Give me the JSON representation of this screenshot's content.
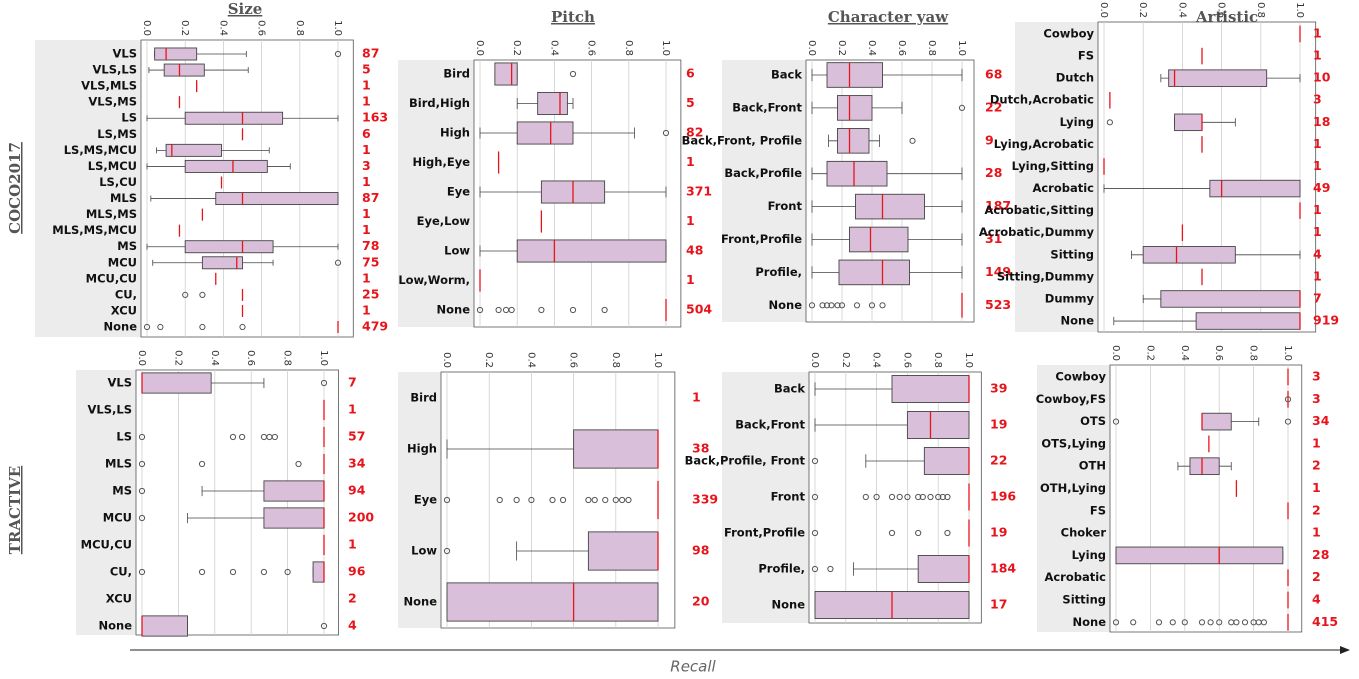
{
  "column_titles": [
    "Size",
    "Pitch",
    "Character yaw",
    "Artistic"
  ],
  "row_labels": [
    "COCO2017",
    "TRACTIVE"
  ],
  "x_label": "Recall",
  "chart_data": [
    {
      "type": "box",
      "color": "#d9bfd9",
      "median_color": "#e8141c",
      "xlim": [
        0,
        1
      ],
      "xticks": [
        {
          "value": 0,
          "label": "0.0"
        },
        0.2,
        0.4,
        0.6,
        0.8,
        {
          "value": 1,
          "label": "1.0"
        }
      ],
      "grid": true,
      "categories": [
        "VLS",
        "VLS,LS",
        "VLS,MLS",
        "VLS,MS",
        "LS",
        "LS,MS",
        "LS,MS,MCU",
        "LS,MCU",
        "LS,CU",
        "MLS",
        "MLS,MS",
        "MLS,MS,MCU",
        "MS",
        "MCU",
        "MCU,CU",
        "CU,",
        "XCU",
        "None"
      ],
      "counts": [
        87,
        5,
        1,
        1,
        163,
        6,
        1,
        3,
        1,
        87,
        1,
        1,
        78,
        75,
        1,
        25,
        1,
        479
      ],
      "boxes": [
        {
          "min": 0.04,
          "q1": 0.04,
          "median": 0.1,
          "q3": 0.26,
          "max": 0.52,
          "outliers": [
            1
          ]
        },
        {
          "min": 0.01,
          "q1": 0.09,
          "median": 0.17,
          "q3": 0.3,
          "max": 0.53
        },
        {
          "median": 0.26
        },
        {
          "median": 0.17
        },
        {
          "min": 0,
          "q1": 0.2,
          "median": 0.5,
          "q3": 0.71,
          "max": 1
        },
        {
          "median": 0.5
        },
        {
          "min": 0.05,
          "q1": 0.1,
          "median": 0.13,
          "q3": 0.39,
          "max": 0.64
        },
        {
          "min": 0,
          "q1": 0.2,
          "median": 0.45,
          "q3": 0.63,
          "max": 0.75
        },
        {
          "median": 0.39
        },
        {
          "min": 0.02,
          "q1": 0.36,
          "median": 0.5,
          "q3": 1,
          "max": 1
        },
        {
          "median": 0.29
        },
        {
          "median": 0.17
        },
        {
          "min": 0,
          "q1": 0.2,
          "median": 0.5,
          "q3": 0.66,
          "max": 1
        },
        {
          "min": 0.03,
          "q1": 0.29,
          "median": 0.47,
          "q3": 0.5,
          "max": 0.66,
          "outliers": [
            1
          ]
        },
        {
          "median": 0.36
        },
        {
          "median": 0.5,
          "outliers": [
            0.2,
            0.29
          ]
        },
        {
          "median": 0.5
        },
        {
          "median": 1,
          "outliers": [
            0,
            0.07,
            0.29,
            0.5
          ]
        }
      ]
    },
    {
      "type": "box",
      "color": "#d9bfd9",
      "median_color": "#e8141c",
      "xlim": [
        0,
        1
      ],
      "xticks": [
        {
          "value": 0,
          "label": "0.0"
        },
        0.2,
        0.4,
        0.6,
        0.8,
        {
          "value": 1,
          "label": "1.0"
        }
      ],
      "grid": true,
      "categories": [
        "Bird",
        "Bird,High",
        "High",
        "High,Eye",
        "Eye",
        "Eye,Low",
        "Low",
        "Low,Worm,",
        "None"
      ],
      "counts": [
        6,
        5,
        82,
        1,
        371,
        1,
        48,
        1,
        504
      ],
      "boxes": [
        {
          "min": 0.08,
          "q1": 0.08,
          "median": 0.17,
          "q3": 0.2,
          "max": 0.2,
          "outliers": [
            0.5
          ]
        },
        {
          "min": 0.2,
          "q1": 0.31,
          "median": 0.43,
          "q3": 0.47,
          "max": 0.5
        },
        {
          "min": 0,
          "q1": 0.2,
          "median": 0.38,
          "q3": 0.5,
          "max": 0.83,
          "outliers": [
            1
          ]
        },
        {
          "median": 0.1
        },
        {
          "min": 0,
          "q1": 0.33,
          "median": 0.5,
          "q3": 0.67,
          "max": 1
        },
        {
          "median": 0.33
        },
        {
          "min": 0,
          "q1": 0.2,
          "median": 0.4,
          "q3": 1,
          "max": 1
        },
        {
          "median": 0
        },
        {
          "median": 1,
          "outliers": [
            0,
            0.1,
            0.14,
            0.17,
            0.33,
            0.5,
            0.67
          ]
        }
      ]
    },
    {
      "type": "box",
      "color": "#d9bfd9",
      "median_color": "#e8141c",
      "xlim": [
        0,
        1
      ],
      "xticks": [
        {
          "value": 0,
          "label": "0.0"
        },
        0.2,
        0.4,
        0.6,
        0.8,
        {
          "value": 1,
          "label": "1.0"
        }
      ],
      "grid": true,
      "categories": [
        "Back",
        "Back,Front",
        "Back,Front, Profile",
        "Back,Profile",
        "Front",
        "Front,Profile",
        "Profile,",
        "None"
      ],
      "counts": [
        68,
        22,
        9,
        28,
        187,
        31,
        149,
        523
      ],
      "boxes": [
        {
          "min": 0,
          "q1": 0.1,
          "median": 0.25,
          "q3": 0.47,
          "max": 1
        },
        {
          "min": 0,
          "q1": 0.17,
          "median": 0.25,
          "q3": 0.4,
          "max": 0.6,
          "outliers": [
            1
          ]
        },
        {
          "min": 0.11,
          "q1": 0.17,
          "median": 0.25,
          "q3": 0.38,
          "max": 0.45,
          "outliers": [
            0.67
          ]
        },
        {
          "min": 0,
          "q1": 0.1,
          "median": 0.28,
          "q3": 0.5,
          "max": 1
        },
        {
          "min": 0,
          "q1": 0.29,
          "median": 0.47,
          "q3": 0.75,
          "max": 1
        },
        {
          "min": 0,
          "q1": 0.25,
          "median": 0.39,
          "q3": 0.64,
          "max": 1
        },
        {
          "min": 0,
          "q1": 0.18,
          "median": 0.47,
          "q3": 0.65,
          "max": 1
        },
        {
          "median": 1,
          "outliers": [
            0,
            0.07,
            0.1,
            0.13,
            0.17,
            0.2,
            0.3,
            0.4,
            0.47
          ]
        }
      ]
    },
    {
      "type": "box",
      "color": "#d9bfd9",
      "median_color": "#e8141c",
      "xlim": [
        0,
        1
      ],
      "xticks": [
        {
          "value": 0,
          "label": "0.0"
        },
        0.2,
        0.4,
        0.6,
        0.8,
        {
          "value": 1,
          "label": "1.0"
        }
      ],
      "grid": true,
      "categories": [
        "Cowboy",
        "FS",
        "Dutch",
        "Dutch,Acrobatic",
        "Lying",
        "Lying,Acrobatic",
        "Lying,Sitting",
        "Acrobatic",
        "Acrobatic,Sitting",
        "Acrobatic,Dummy",
        "Sitting",
        "Sitting,Dummy",
        "Dummy",
        "None"
      ],
      "counts": [
        1,
        1,
        10,
        3,
        18,
        1,
        1,
        49,
        1,
        1,
        4,
        1,
        7,
        919
      ],
      "boxes": [
        {
          "median": 1
        },
        {
          "median": 0.5
        },
        {
          "min": 0.29,
          "q1": 0.33,
          "median": 0.36,
          "q3": 0.83,
          "max": 1
        },
        {
          "median": 0.03
        },
        {
          "min": 0.36,
          "q1": 0.36,
          "median": 0.5,
          "q3": 0.5,
          "max": 0.67,
          "outliers": [
            0.03
          ]
        },
        {
          "median": 0.5
        },
        {
          "median": 0
        },
        {
          "min": 0,
          "q1": 0.54,
          "median": 0.6,
          "q3": 1,
          "max": 1
        },
        {
          "median": 1
        },
        {
          "median": 0.4
        },
        {
          "min": 0.14,
          "q1": 0.2,
          "median": 0.37,
          "q3": 0.67,
          "max": 1
        },
        {
          "median": 0.5
        },
        {
          "min": 0.2,
          "q1": 0.29,
          "median": 1,
          "q3": 1,
          "max": 1
        },
        {
          "min": 0.05,
          "q1": 0.47,
          "median": 1,
          "q3": 1,
          "max": 1
        }
      ]
    },
    {
      "type": "box",
      "color": "#d9bfd9",
      "median_color": "#e8141c",
      "xlim": [
        0,
        1
      ],
      "xticks": [
        {
          "value": 0,
          "label": "0.0"
        },
        0.2,
        0.4,
        0.6,
        0.8,
        {
          "value": 1,
          "label": "1.0"
        }
      ],
      "grid": true,
      "categories": [
        "VLS",
        "VLS,LS",
        "LS",
        "MLS",
        "MS",
        "MCU",
        "MCU,CU",
        "CU,",
        "XCU",
        "None"
      ],
      "counts": [
        7,
        1,
        57,
        34,
        94,
        200,
        1,
        96,
        2,
        4
      ],
      "boxes": [
        {
          "min": 0,
          "q1": 0,
          "median": 0,
          "q3": 0.38,
          "max": 0.67,
          "outliers": [
            1
          ]
        },
        {
          "median": 1
        },
        {
          "median": 1,
          "outliers": [
            0,
            0.5,
            0.55,
            0.67,
            0.7,
            0.73
          ]
        },
        {
          "median": 1,
          "outliers": [
            0,
            0.33,
            0.86
          ]
        },
        {
          "min": 0.33,
          "q1": 0.67,
          "median": 1,
          "q3": 1,
          "max": 1,
          "outliers": [
            0
          ]
        },
        {
          "min": 0.25,
          "q1": 0.67,
          "median": 1,
          "q3": 1,
          "max": 1,
          "outliers": [
            0
          ]
        },
        {
          "median": 1
        },
        {
          "min": 0.94,
          "q1": 0.94,
          "median": 1,
          "q3": 1,
          "max": 1,
          "outliers": [
            0,
            0.33,
            0.5,
            0.67,
            0.8
          ]
        },
        null,
        {
          "min": 0,
          "q1": 0,
          "median": 0,
          "q3": 0.25,
          "max": 0.25,
          "outliers": [
            1
          ]
        }
      ]
    },
    {
      "type": "box",
      "color": "#d9bfd9",
      "median_color": "#e8141c",
      "xlim": [
        0,
        1
      ],
      "xticks": [
        {
          "value": 0,
          "label": "0.0"
        },
        0.2,
        0.4,
        0.6,
        0.8,
        {
          "value": 1,
          "label": "1.0"
        }
      ],
      "grid": true,
      "categories": [
        "Bird",
        "High",
        "Eye",
        "Low",
        "None"
      ],
      "counts": [
        1,
        38,
        339,
        98,
        20
      ],
      "boxes": [
        null,
        {
          "min": 0,
          "q1": 0.6,
          "median": 1,
          "q3": 1,
          "max": 1
        },
        {
          "median": 1,
          "outliers": [
            0,
            0.25,
            0.33,
            0.4,
            0.5,
            0.55,
            0.67,
            0.7,
            0.75,
            0.8,
            0.83,
            0.86
          ]
        },
        {
          "min": 0.33,
          "q1": 0.67,
          "median": 1,
          "q3": 1,
          "max": 1,
          "outliers": [
            0
          ]
        },
        {
          "min": 0,
          "q1": 0,
          "median": 0.6,
          "q3": 1,
          "max": 1
        }
      ]
    },
    {
      "type": "box",
      "color": "#d9bfd9",
      "median_color": "#e8141c",
      "xlim": [
        0,
        1
      ],
      "xticks": [
        {
          "value": 0,
          "label": "0.0"
        },
        0.2,
        0.4,
        0.6,
        0.8,
        {
          "value": 1,
          "label": "1.0"
        }
      ],
      "grid": true,
      "categories": [
        "Back",
        "Back,Front",
        "Back,Profile, Front",
        "Front",
        "Front,Profile",
        "Profile,",
        "None"
      ],
      "counts": [
        39,
        19,
        22,
        196,
        19,
        184,
        17
      ],
      "boxes": [
        {
          "min": 0,
          "q1": 0.5,
          "median": 1,
          "q3": 1,
          "max": 1
        },
        {
          "min": 0,
          "q1": 0.6,
          "median": 0.75,
          "q3": 1,
          "max": 1
        },
        {
          "min": 0.33,
          "q1": 0.71,
          "median": 1,
          "q3": 1,
          "max": 1,
          "outliers": [
            0
          ]
        },
        {
          "median": 1,
          "outliers": [
            0,
            0.33,
            0.4,
            0.5,
            0.55,
            0.6,
            0.67,
            0.7,
            0.75,
            0.8,
            0.83,
            0.86
          ]
        },
        {
          "median": 1,
          "outliers": [
            0,
            0.5,
            0.67,
            0.86
          ]
        },
        {
          "min": 0.25,
          "q1": 0.67,
          "median": 1,
          "q3": 1,
          "max": 1,
          "outliers": [
            0,
            0.1
          ]
        },
        {
          "min": 0,
          "q1": 0,
          "median": 0.5,
          "q3": 1,
          "max": 1
        }
      ]
    },
    {
      "type": "box",
      "color": "#d9bfd9",
      "median_color": "#e8141c",
      "xlim": [
        0,
        1
      ],
      "xticks": [
        {
          "value": 0,
          "label": "0.0"
        },
        0.2,
        0.4,
        0.6,
        0.8,
        {
          "value": 1,
          "label": "1.0"
        }
      ],
      "grid": true,
      "categories": [
        "Cowboy",
        "Cowboy,FS",
        "OTS",
        "OTS,Lying",
        "OTH",
        "OTH,Lying",
        "FS",
        "Choker",
        "Lying",
        "Acrobatic",
        "Sitting",
        "None"
      ],
      "counts": [
        3,
        3,
        34,
        1,
        2,
        1,
        2,
        1,
        28,
        2,
        4,
        415
      ],
      "boxes": [
        {
          "median": 1
        },
        {
          "median": 1,
          "outliers": [
            1
          ]
        },
        {
          "min": 0.5,
          "q1": 0.5,
          "median": 0.5,
          "q3": 0.67,
          "max": 0.83,
          "outliers": [
            0,
            1
          ]
        },
        {
          "median": 0.54
        },
        {
          "min": 0.36,
          "q1": 0.43,
          "median": 0.5,
          "q3": 0.6,
          "max": 0.67
        },
        {
          "median": 0.7
        },
        {
          "median": 1
        },
        null,
        {
          "min": 0,
          "q1": 0,
          "median": 0.6,
          "q3": 0.97,
          "max": 0.97
        },
        {
          "median": 1
        },
        {
          "median": 1
        },
        {
          "median": 1,
          "outliers": [
            0,
            0.1,
            0.25,
            0.33,
            0.4,
            0.5,
            0.55,
            0.6,
            0.67,
            0.7,
            0.75,
            0.8,
            0.83,
            0.86
          ]
        }
      ]
    }
  ]
}
